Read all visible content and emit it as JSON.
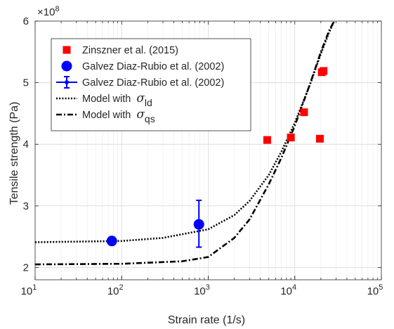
{
  "chart_data": {
    "type": "scatter",
    "xlabel": "Strain rate (1/s)",
    "ylabel": "Tensile strength (Pa)",
    "xscale": "log",
    "xlim": [
      10,
      100000
    ],
    "ylim": [
      180000000.0,
      600000000.0
    ],
    "y_exponent_label": "×10",
    "y_exponent_sup": "8",
    "x_ticks": [
      {
        "value": 10,
        "base": "10",
        "exp": "1"
      },
      {
        "value": 100,
        "base": "10",
        "exp": "2"
      },
      {
        "value": 1000,
        "base": "10",
        "exp": "3"
      },
      {
        "value": 10000,
        "base": "10",
        "exp": "4"
      },
      {
        "value": 100000,
        "base": "10",
        "exp": "5"
      }
    ],
    "y_ticks": [
      {
        "value": 200000000.0,
        "label": "2"
      },
      {
        "value": 300000000.0,
        "label": "3"
      },
      {
        "value": 400000000.0,
        "label": "4"
      },
      {
        "value": 500000000.0,
        "label": "5"
      },
      {
        "value": 600000000.0,
        "label": "6"
      }
    ],
    "grid": true,
    "legend_position": "top-left",
    "series": [
      {
        "name": "Zinszner et al. (2015)",
        "kind": "markers",
        "marker": "square",
        "color": "#ff0000",
        "points": [
          {
            "x": 4800,
            "y": 407000000.0
          },
          {
            "x": 9000,
            "y": 411000000.0
          },
          {
            "x": 12800,
            "y": 452000000.0
          },
          {
            "x": 19500,
            "y": 409000000.0
          },
          {
            "x": 20500,
            "y": 517000000.0
          },
          {
            "x": 21500,
            "y": 519000000.0
          }
        ]
      },
      {
        "name": "Galvez Diaz-Rubio et al. (2002)",
        "kind": "markers",
        "marker": "circle",
        "color": "#0000ff",
        "points": [
          {
            "x": 77,
            "y": 243000000.0
          },
          {
            "x": 780,
            "y": 270000000.0
          }
        ]
      },
      {
        "name": "Galvez Diaz-Rubio et al. (2002)",
        "kind": "errorbar",
        "marker": "dot",
        "color": "#0000ff",
        "points": [
          {
            "x": 780,
            "y": 270000000.0,
            "ylow": 233000000.0,
            "yhigh": 309000000.0
          }
        ]
      },
      {
        "name": "Model with",
        "symbol": "σ",
        "subscript": "ld",
        "kind": "line",
        "style": "dotted",
        "color": "#000000",
        "points": [
          {
            "x": 10,
            "y": 241000000.0
          },
          {
            "x": 100,
            "y": 243000000.0
          },
          {
            "x": 300,
            "y": 248000000.0
          },
          {
            "x": 1000,
            "y": 262000000.0
          },
          {
            "x": 2000,
            "y": 285000000.0
          },
          {
            "x": 3000,
            "y": 308000000.0
          },
          {
            "x": 5000,
            "y": 350000000.0
          },
          {
            "x": 7000,
            "y": 388000000.0
          },
          {
            "x": 10000,
            "y": 435000000.0
          },
          {
            "x": 15000,
            "y": 497000000.0
          },
          {
            "x": 20000,
            "y": 547000000.0
          },
          {
            "x": 25000,
            "y": 582000000.0
          },
          {
            "x": 28500,
            "y": 600000000.0
          }
        ]
      },
      {
        "name": "Model with",
        "symbol": "σ",
        "subscript": "qs",
        "kind": "line",
        "style": "dashdot",
        "color": "#000000",
        "points": [
          {
            "x": 10,
            "y": 205000000.0
          },
          {
            "x": 100,
            "y": 206000000.0
          },
          {
            "x": 500,
            "y": 210000000.0
          },
          {
            "x": 1000,
            "y": 217000000.0
          },
          {
            "x": 2000,
            "y": 248000000.0
          },
          {
            "x": 3000,
            "y": 278000000.0
          },
          {
            "x": 5000,
            "y": 335000000.0
          },
          {
            "x": 7000,
            "y": 378000000.0
          },
          {
            "x": 10000,
            "y": 430000000.0
          },
          {
            "x": 15000,
            "y": 498000000.0
          },
          {
            "x": 20000,
            "y": 550000000.0
          },
          {
            "x": 25000,
            "y": 585000000.0
          },
          {
            "x": 28500,
            "y": 600000000.0
          }
        ]
      }
    ]
  }
}
